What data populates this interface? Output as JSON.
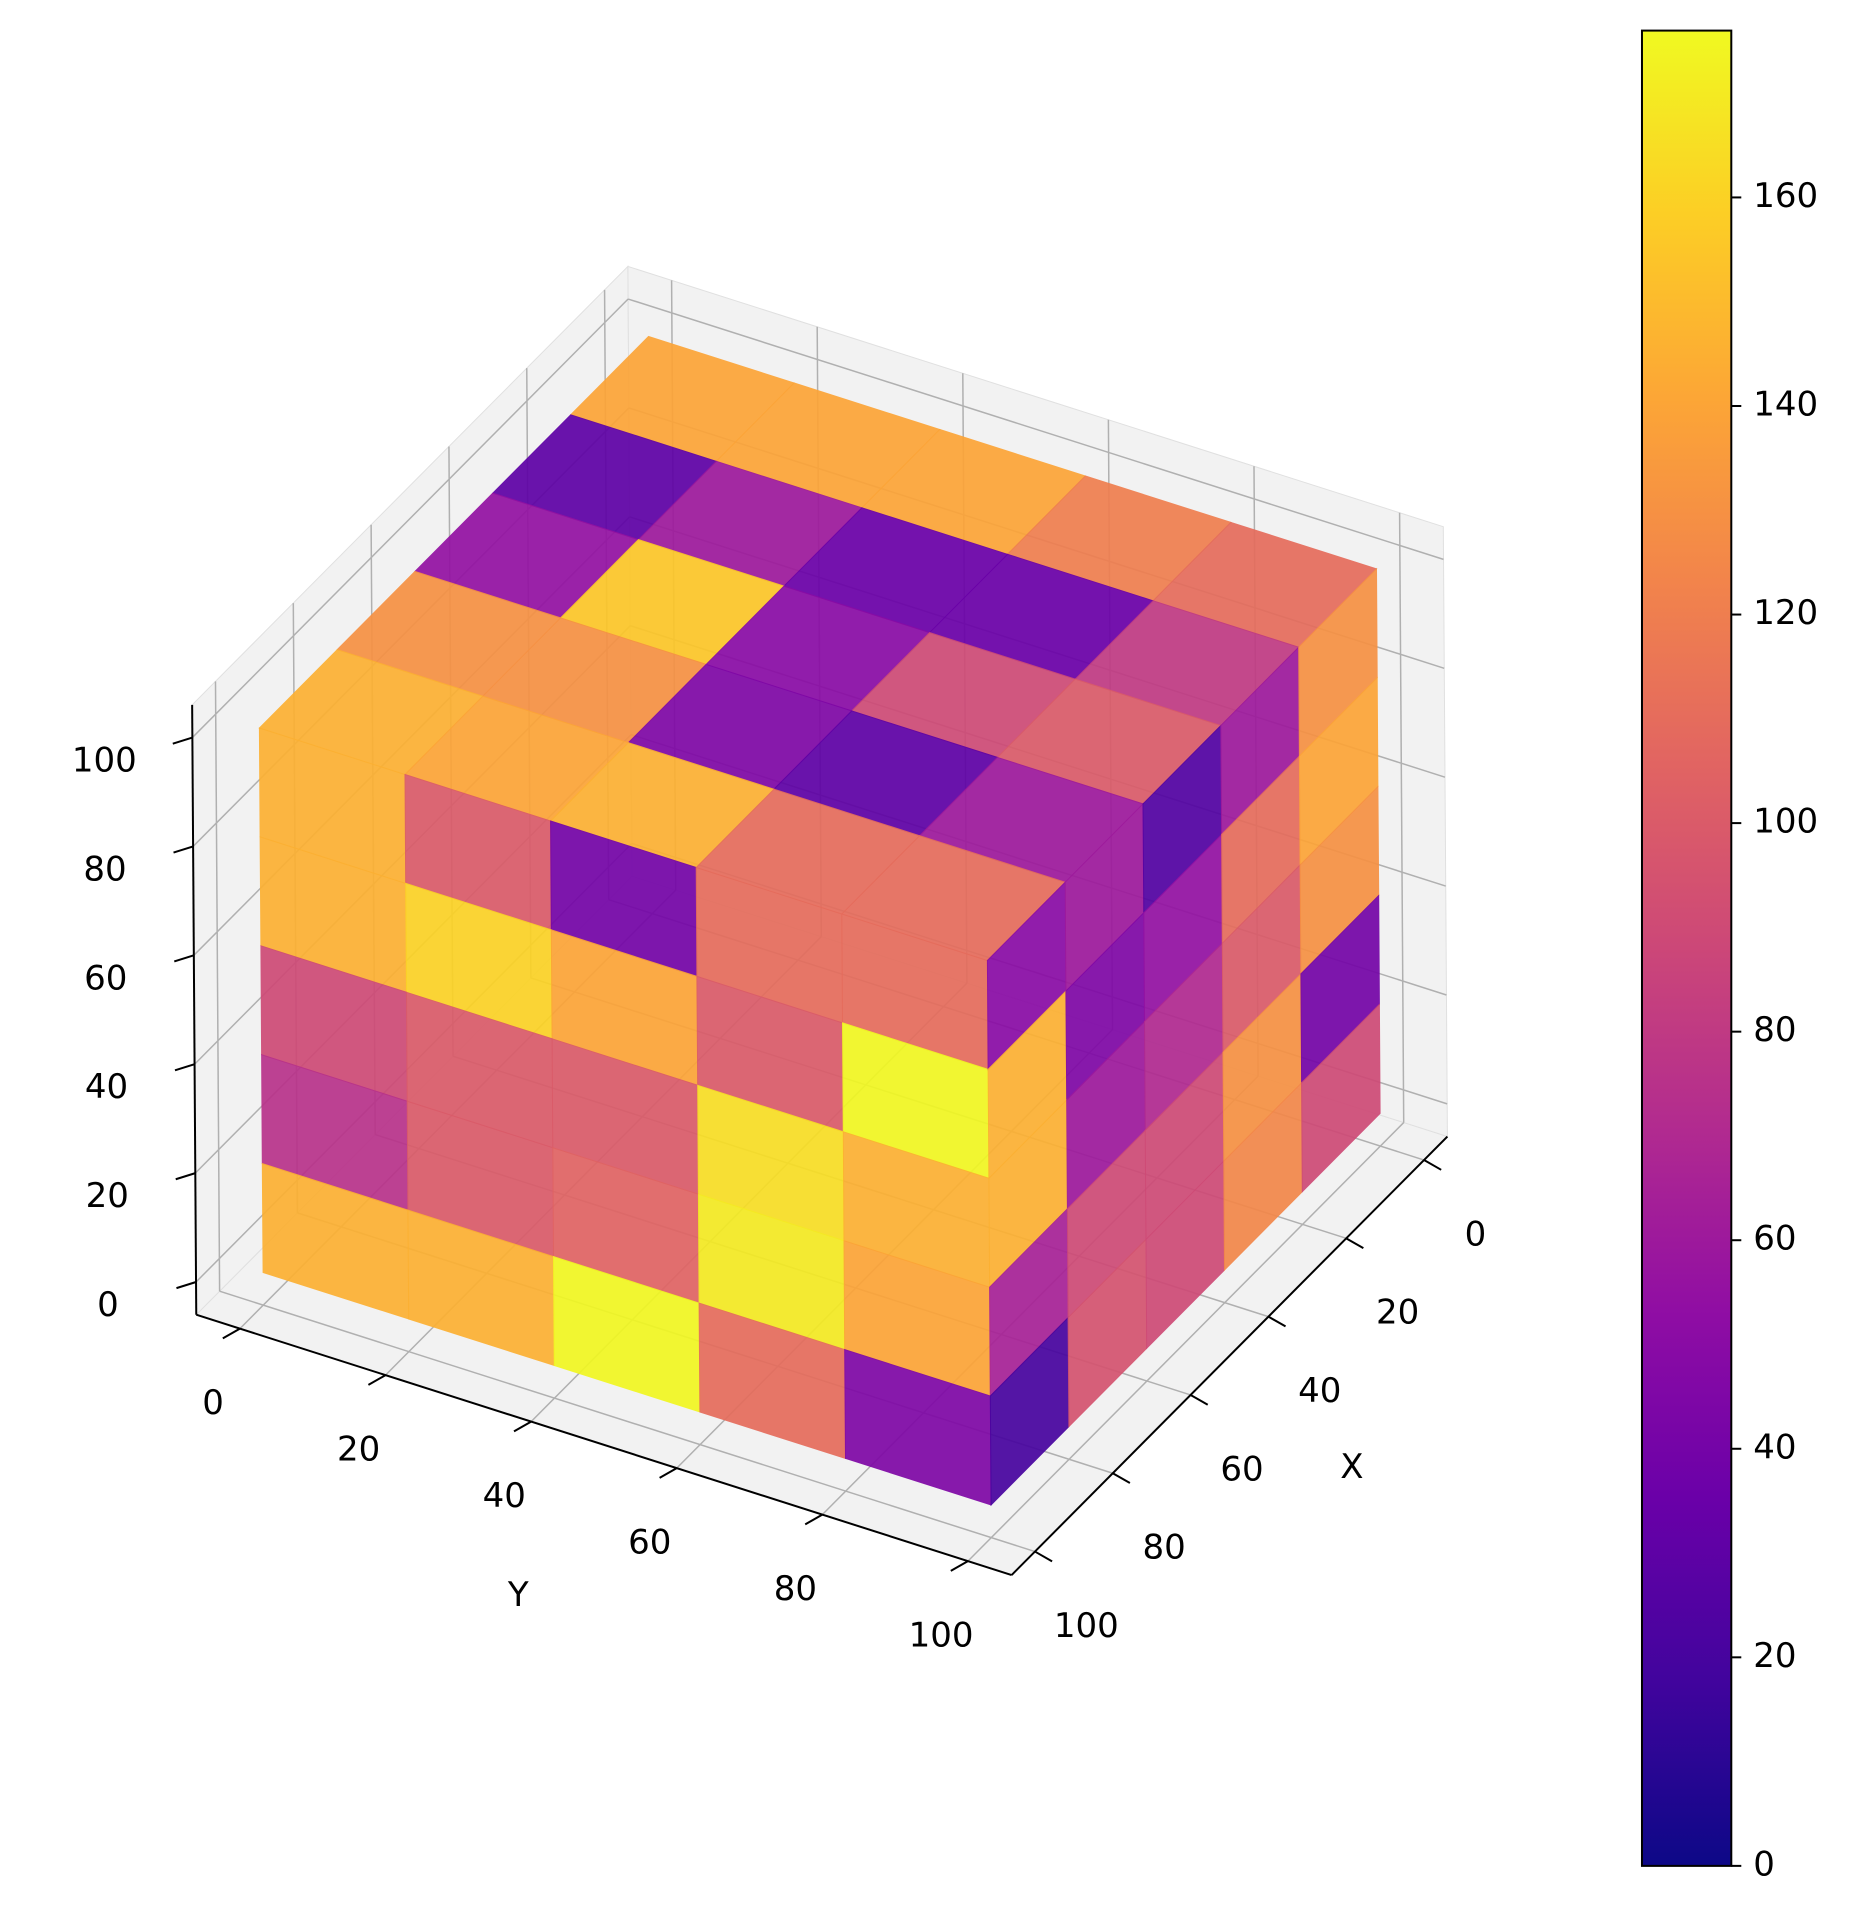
{
  "chart_data": {
    "type": "voxel3d",
    "xlabel": "X",
    "ylabel": "Y",
    "xlim": [
      -6,
      106
    ],
    "ylim": [
      -6,
      106
    ],
    "zlim": [
      -6,
      106
    ],
    "xticks": [
      0,
      20,
      40,
      60,
      80,
      100
    ],
    "yticks": [
      0,
      20,
      40,
      60,
      80,
      100
    ],
    "zticks": [
      0,
      20,
      40,
      60,
      80,
      100
    ],
    "grid": true,
    "colormap": "plasma",
    "colorbar": {
      "lim": [
        0,
        176
      ],
      "ticks": [
        0,
        20,
        40,
        60,
        80,
        100,
        120,
        140,
        160
      ]
    },
    "faces": {
      "top": [
        [
          140,
          140,
          140,
          120,
          110
        ],
        [
          30,
          60,
          35,
          35,
          80
        ],
        [
          55,
          155,
          50,
          90,
          100
        ],
        [
          130,
          130,
          45,
          30,
          60
        ],
        [
          145,
          140,
          145,
          110,
          110
        ]
      ],
      "x_max": [
        [
          145,
          100,
          40,
          110,
          110
        ],
        [
          145,
          160,
          140,
          100,
          175
        ],
        [
          90,
          100,
          100,
          165,
          145
        ],
        [
          75,
          100,
          105,
          170,
          140
        ],
        [
          145,
          145,
          175,
          110,
          45
        ]
      ],
      "y_max": [
        [
          50,
          60,
          25,
          60,
          130
        ],
        [
          145,
          45,
          55,
          110,
          140
        ],
        [
          145,
          60,
          70,
          100,
          130
        ],
        [
          65,
          90,
          90,
          130,
          40
        ],
        [
          20,
          95,
          90,
          125,
          90
        ]
      ]
    }
  }
}
